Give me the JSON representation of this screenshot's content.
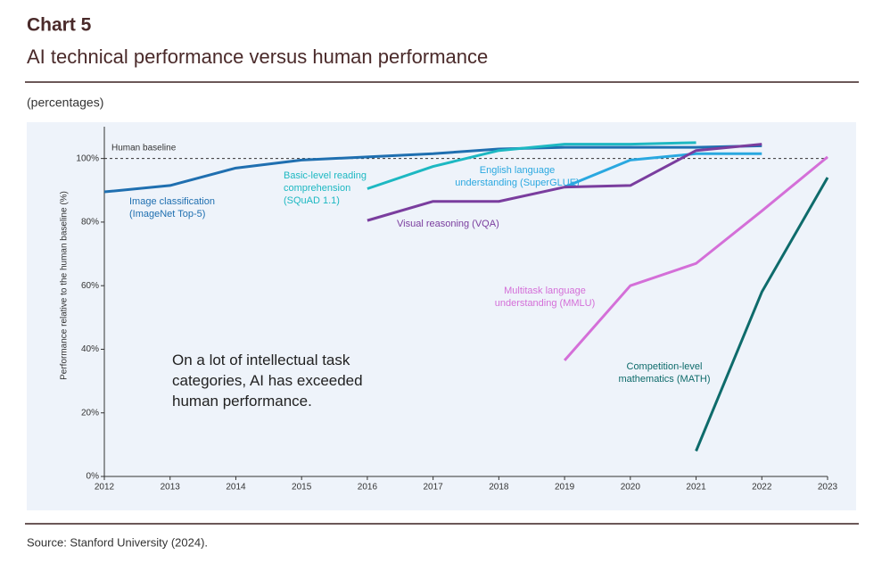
{
  "chart_data": {
    "type": "line",
    "heading": "Chart 5",
    "title": "AI technical performance versus human performance",
    "subtitle": "(percentages)",
    "y_label": "Performance relative to the human baseline (%)",
    "annotation": "On a lot of intellectual task\ncategories, AI has exceeded\nhuman performance.",
    "source": "Source: Stanford University (2024).",
    "baseline": {
      "value": 100,
      "label": "Human baseline"
    },
    "x": [
      2012,
      2013,
      2014,
      2015,
      2016,
      2017,
      2018,
      2019,
      2020,
      2021,
      2022,
      2023
    ],
    "xlim": [
      2012,
      2023
    ],
    "xticks": [
      2012,
      2013,
      2014,
      2015,
      2016,
      2017,
      2018,
      2019,
      2020,
      2021,
      2022,
      2023
    ],
    "ylim": [
      0,
      110
    ],
    "yticks": [
      {
        "value": 0,
        "label": "0%"
      },
      {
        "value": 20,
        "label": "20%"
      },
      {
        "value": 40,
        "label": "40%"
      },
      {
        "value": 60,
        "label": "60%"
      },
      {
        "value": 80,
        "label": "80%"
      },
      {
        "value": 100,
        "label": "100%"
      }
    ],
    "series": [
      {
        "name": "Image classification\n(ImageNet Top-5)",
        "color": "#1f6fb0",
        "values": [
          89.5,
          91.5,
          97,
          99.5,
          100.5,
          101.5,
          103,
          103.5,
          103.5,
          103.5,
          104,
          null
        ]
      },
      {
        "name": "Basic-level reading\ncomprehension\n(SQuAD 1.1)",
        "color": "#1db8c2",
        "values": [
          null,
          null,
          null,
          null,
          90.5,
          97.5,
          102.5,
          104.5,
          104.5,
          105,
          null,
          null
        ]
      },
      {
        "name": "English language\nunderstanding (SuperGLUE)",
        "color": "#2aa8e0",
        "values": [
          null,
          null,
          null,
          null,
          null,
          null,
          null,
          91,
          99.5,
          101.5,
          101.5,
          null
        ]
      },
      {
        "name": "Visual reasoning (VQA)",
        "color": "#7a3d9e",
        "values": [
          null,
          null,
          null,
          null,
          80.5,
          86.5,
          86.5,
          91,
          91.5,
          102.5,
          104.5,
          null
        ]
      },
      {
        "name": "Multitask language\nunderstanding (MMLU)",
        "color": "#d46fd8",
        "values": [
          null,
          null,
          null,
          null,
          null,
          null,
          null,
          36.5,
          60,
          67,
          83.5,
          100.5
        ]
      },
      {
        "name": "Competition-level\nmathematics (MATH)",
        "color": "#0e6b6b",
        "values": [
          null,
          null,
          null,
          null,
          null,
          null,
          null,
          null,
          null,
          8,
          58,
          94
        ]
      }
    ]
  }
}
